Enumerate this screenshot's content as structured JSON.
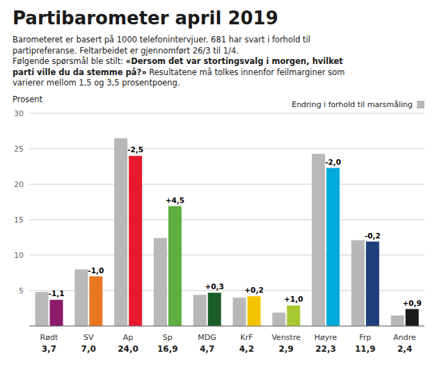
{
  "chart_data": {
    "type": "bar",
    "title": "Partibarometer april 2019",
    "subtitle": [
      "Barometeret er basert på 1000 telefonintervjuer. 681 har svart i forhold til",
      "partipreferanse. Feltarbeidet er gjennomført 26/3 til 1/4.",
      "Følgende spørsmål ble stilt: «Dersom det var stortingsvalg i morgen, hvilket",
      "parti ville du da stemme på?» Resultatene må tolkes innenfor feilmarginer som",
      "varierer mellom 1,5 og 3,5 prosentpoeng."
    ],
    "ylabel": "Prosent",
    "categories": [
      "Rødt",
      "SV",
      "Ap",
      "Sp",
      "MDG",
      "KrF",
      "Venstre",
      "Høyre",
      "Frp",
      "Andre"
    ],
    "series": [
      {
        "name": "Endring i forhold til marsmåling",
        "color": "#B8B8B8",
        "values": [
          4.8,
          8.0,
          26.5,
          12.4,
          4.4,
          4.0,
          1.9,
          24.3,
          12.1,
          1.5
        ]
      },
      {
        "colors": [
          "#8B1A6B",
          "#E87722",
          "#E8192C",
          "#5DAF40",
          "#1A5C2A",
          "#F5C400",
          "#A8C832",
          "#00AADC",
          "#1E3F7A",
          "#1A1A1A"
        ],
        "values": [
          3.7,
          7.0,
          24.0,
          16.9,
          4.7,
          4.2,
          2.9,
          22.3,
          11.9,
          2.4
        ],
        "data_labels": true,
        "value_labels": [
          "3,7",
          "7,0",
          "24,0",
          "16,9",
          "4,7",
          "4,2",
          "2,9",
          "22,3",
          "11,9",
          "2,4"
        ],
        "changes": [
          "-1,1",
          "-1,0",
          "-2,5",
          "+4,5",
          "+0,3",
          "+0,2",
          "+1,0",
          "-2,0",
          "-0,2",
          "+0,9"
        ]
      }
    ],
    "ylim": [
      0,
      30
    ],
    "yticks": [
      5,
      10,
      15,
      20,
      25,
      30
    ],
    "grid": true,
    "legend": "upper right"
  }
}
